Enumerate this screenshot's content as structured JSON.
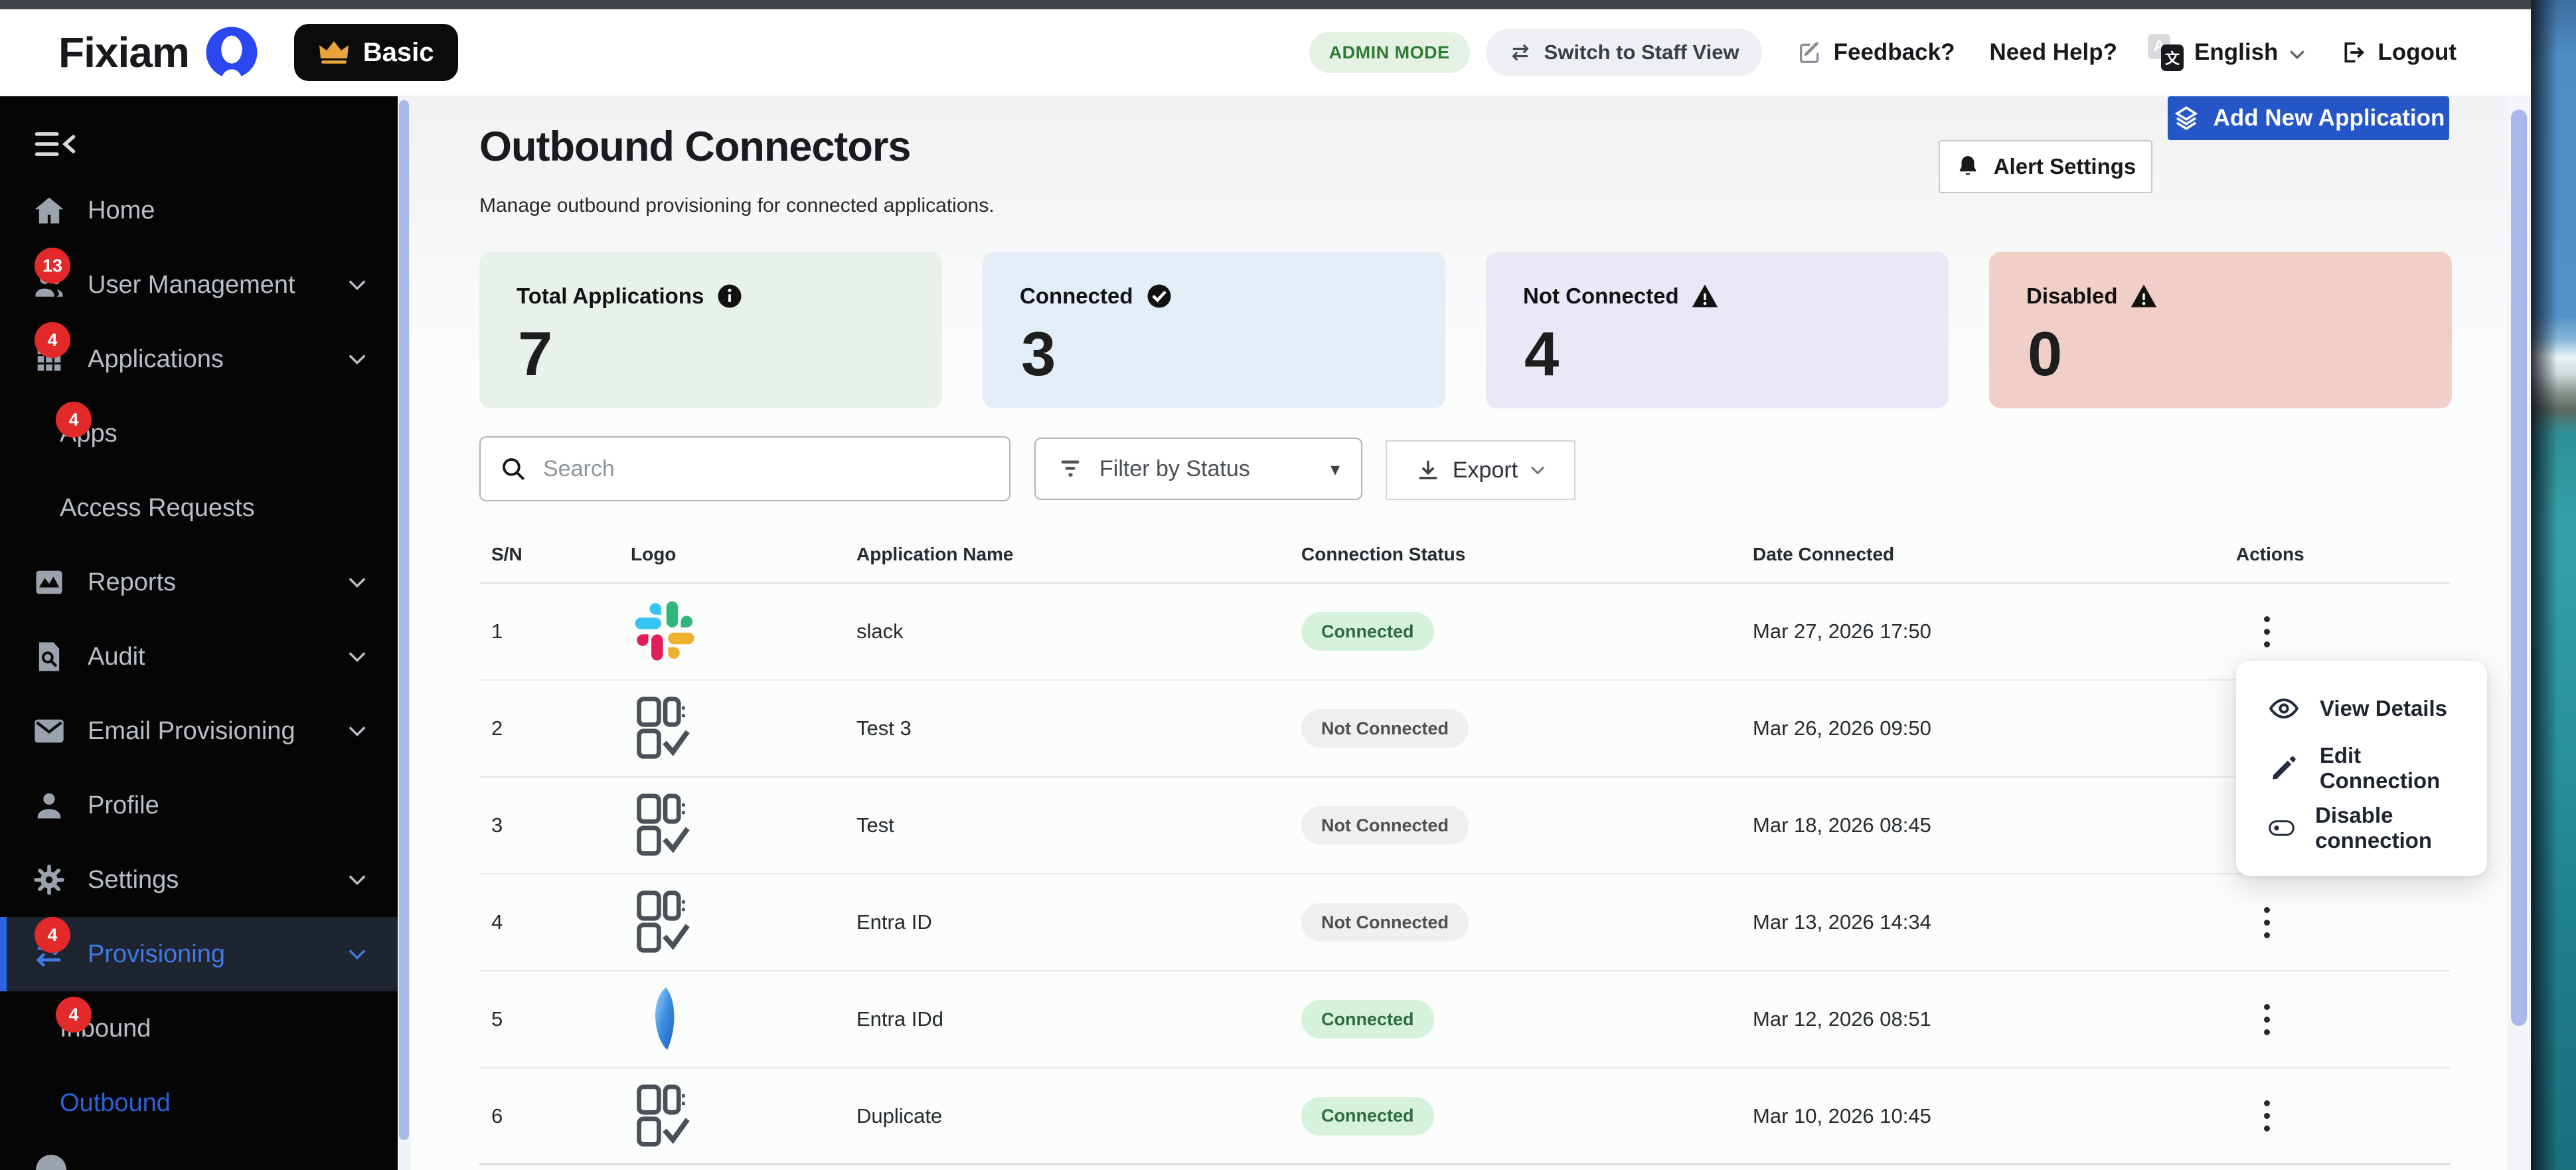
{
  "header": {
    "brand": "Fixiam",
    "plan": "Basic",
    "admin_mode": "ADMIN MODE",
    "switch_view": "Switch to Staff View",
    "feedback": "Feedback?",
    "need_help": "Need Help?",
    "language": "English",
    "logout": "Logout"
  },
  "sidebar": {
    "items": [
      {
        "id": "home",
        "label": "Home",
        "icon": "home"
      },
      {
        "id": "user-management",
        "label": "User Management",
        "icon": "users",
        "badge": "13",
        "chevron": true
      },
      {
        "id": "applications",
        "label": "Applications",
        "icon": "grid",
        "badge": "4",
        "chevron": true
      },
      {
        "id": "apps",
        "label": "Apps",
        "sub": true,
        "badge": "4"
      },
      {
        "id": "access-requests",
        "label": "Access Requests",
        "sub": true
      },
      {
        "id": "reports",
        "label": "Reports",
        "icon": "reports",
        "chevron": true
      },
      {
        "id": "audit",
        "label": "Audit",
        "icon": "audit",
        "chevron": true
      },
      {
        "id": "email-provisioning",
        "label": "Email Provisioning",
        "icon": "mail",
        "chevron": true
      },
      {
        "id": "profile",
        "label": "Profile",
        "icon": "person"
      },
      {
        "id": "settings",
        "label": "Settings",
        "icon": "gear",
        "chevron": true
      },
      {
        "id": "provisioning",
        "label": "Provisioning",
        "icon": "swap",
        "badge": "4",
        "chevron": true,
        "active": true
      },
      {
        "id": "inbound",
        "label": "Inbound",
        "sub": true,
        "badge": "4"
      },
      {
        "id": "outbound",
        "label": "Outbound",
        "sub": true,
        "bluelink": true
      }
    ]
  },
  "page": {
    "title": "Outbound Connectors",
    "subtitle": "Manage outbound provisioning for connected applications.",
    "add_button": "Add New Application",
    "alert_button": "Alert Settings"
  },
  "stats": [
    {
      "label": "Total Applications",
      "icon": "info",
      "value": "7",
      "bg": "#e9f2ea"
    },
    {
      "label": "Connected",
      "icon": "check",
      "value": "3",
      "bg": "#e4eef8"
    },
    {
      "label": "Not Connected",
      "icon": "warning",
      "value": "4",
      "bg": "#eae7f6"
    },
    {
      "label": "Disabled",
      "icon": "warning",
      "value": "0",
      "bg": "#f0cfc8"
    }
  ],
  "toolbar": {
    "search_placeholder": "Search",
    "filter_label": "Filter by Status",
    "export_label": "Export"
  },
  "table": {
    "columns": [
      "S/N",
      "Logo",
      "Application Name",
      "Connection Status",
      "Date Connected",
      "Actions"
    ],
    "rows": [
      {
        "sn": "1",
        "logo": "slack",
        "name": "slack",
        "status": "Connected",
        "date": "Mar 27, 2026 17:50"
      },
      {
        "sn": "2",
        "logo": "generic",
        "name": "Test 3",
        "status": "Not Connected",
        "date": "Mar 26, 2026 09:50"
      },
      {
        "sn": "3",
        "logo": "generic",
        "name": "Test",
        "status": "Not Connected",
        "date": "Mar 18, 2026 08:45"
      },
      {
        "sn": "4",
        "logo": "generic",
        "name": "Entra ID",
        "status": "Not Connected",
        "date": "Mar 13, 2026 14:34"
      },
      {
        "sn": "5",
        "logo": "entra",
        "name": "Entra IDd",
        "status": "Connected",
        "date": "Mar 12, 2026 08:51"
      },
      {
        "sn": "6",
        "logo": "generic",
        "name": "Duplicate",
        "status": "Connected",
        "date": "Mar 10, 2026 10:45"
      }
    ],
    "status_colors": {
      "Connected": {
        "bg": "#d6f2da",
        "text": "#2e6b3f"
      },
      "Not Connected": {
        "bg": "#efefef",
        "text": "#4f4f4f"
      }
    }
  },
  "context_menu": {
    "items": [
      {
        "label": "View Details",
        "icon": "eye"
      },
      {
        "label": "Edit Connection",
        "icon": "pencil"
      },
      {
        "label": "Disable connection",
        "icon": "toggle"
      }
    ]
  },
  "accent_colors": {
    "primary_blue": "#2456c7",
    "active_link": "#2a62dd",
    "badge_red": "#e22a2a"
  }
}
